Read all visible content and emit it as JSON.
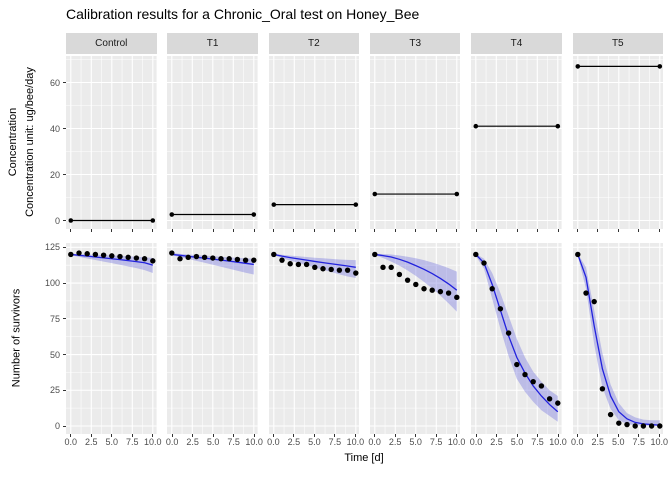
{
  "title": "Calibration results for a Chronic_Oral test on Honey_Bee",
  "colors": {
    "panel_background": "#ebebeb",
    "strip_background": "#d9d9d9",
    "grid_major": "#ffffff",
    "grid_minor": "#ffffff",
    "fit_line": "#2222dd",
    "ribbon": "rgba(100,100,220,0.35)",
    "observed_point": "#000000",
    "concentration_line": "#000000",
    "tick": "#333333",
    "axis_text": "#4d4d4d"
  },
  "chart_data": {
    "type": "line",
    "title": "Calibration results for a Chronic_Oral test on Honey_Bee",
    "xlabel": "Time [d]",
    "x": [
      0,
      1,
      2,
      3,
      4,
      5,
      6,
      7,
      8,
      9,
      10
    ],
    "x_tick_values": [
      0,
      2.5,
      5,
      7.5,
      10
    ],
    "x_tick_labels": [
      "0.0",
      "2.5",
      "5.0",
      "7.5",
      "10.0"
    ],
    "x_minor_ticks": [
      1.25,
      3.75,
      6.25,
      8.75
    ],
    "facet_labels": [
      "Control",
      "T1",
      "T2",
      "T3",
      "T4",
      "T5"
    ],
    "top_row": {
      "ylabel_line1": "Concentration",
      "ylabel_line2": "Concentration unit: ug/bee/day",
      "y_ticks": [
        0,
        20,
        40,
        60
      ],
      "y_minor_ticks": [
        10,
        30,
        50,
        70
      ],
      "ylim": [
        0,
        71.5
      ]
    },
    "bottom_row": {
      "ylabel": "Number of survivors",
      "y_ticks": [
        0,
        25,
        50,
        75,
        100,
        125
      ],
      "y_minor_ticks": [
        12.5,
        37.5,
        62.5,
        87.5,
        112.5
      ],
      "ylim": [
        0,
        128
      ]
    },
    "facets": [
      {
        "label": "Control",
        "concentration": 0,
        "observed": [
          120,
          121,
          120.5,
          120,
          119.5,
          119,
          118.5,
          118,
          117.5,
          117,
          115.5
        ],
        "fit": [
          120,
          119.4,
          118.8,
          118.2,
          117.6,
          117,
          116.4,
          115.7,
          115,
          114.2,
          112.5
        ],
        "ci_upper": [
          120.5,
          120.2,
          120,
          119.8,
          119.5,
          119.3,
          119,
          118.7,
          118.4,
          118,
          117.5
        ],
        "ci_lower": [
          119.5,
          118.3,
          117.2,
          116.1,
          115,
          113.9,
          112.8,
          111.6,
          110.4,
          109,
          107
        ]
      },
      {
        "label": "T1",
        "concentration": 2.6,
        "observed": [
          121,
          117,
          118,
          118.5,
          118,
          117.5,
          117,
          117,
          116.5,
          116,
          116
        ],
        "fit": [
          120,
          119.4,
          118.7,
          118,
          117.4,
          116.7,
          116,
          115.3,
          114.6,
          113.8,
          113
        ],
        "ci_upper": [
          121,
          120.4,
          120,
          119.6,
          119.2,
          118.8,
          118.4,
          118,
          117.6,
          117.3,
          117
        ],
        "ci_lower": [
          119.5,
          118.1,
          116.8,
          115.5,
          114.2,
          112.8,
          111.4,
          110,
          108.6,
          107.2,
          106
        ]
      },
      {
        "label": "T2",
        "concentration": 6.9,
        "observed": [
          120,
          116,
          113.5,
          113,
          113,
          111,
          110,
          109.5,
          109,
          109,
          107
        ],
        "fit": [
          120,
          118.8,
          117.8,
          116.9,
          116,
          115.1,
          114.3,
          113.5,
          112.7,
          111.9,
          111
        ],
        "ci_upper": [
          120.5,
          119.8,
          119.2,
          118.7,
          118.2,
          117.7,
          117.3,
          116.9,
          116.5,
          116.2,
          116
        ],
        "ci_lower": [
          119.5,
          117.4,
          115.7,
          114.1,
          112.5,
          110.9,
          109.3,
          107.7,
          106.1,
          104.6,
          103.5
        ]
      },
      {
        "label": "T3",
        "concentration": 11.5,
        "observed": [
          120,
          111,
          111,
          106,
          102,
          99,
          96,
          95,
          94,
          93,
          90
        ],
        "fit": [
          120,
          119.2,
          118.2,
          116.6,
          114.6,
          112.2,
          109.6,
          106.6,
          103.2,
          99.4,
          95
        ],
        "ci_upper": [
          120.5,
          120.3,
          120,
          119.3,
          118.4,
          117.3,
          116,
          114.4,
          112.5,
          110.4,
          108
        ],
        "ci_lower": [
          119.5,
          117.5,
          115,
          112.2,
          108.8,
          105,
          100.8,
          96.2,
          91.2,
          85.8,
          80
        ]
      },
      {
        "label": "T4",
        "concentration": 41,
        "observed": [
          120,
          114,
          96,
          82,
          65,
          43,
          36,
          31,
          28,
          19,
          16
        ],
        "fit": [
          120,
          114,
          99,
          81,
          63,
          48,
          37,
          28,
          21,
          15,
          10
        ],
        "ci_upper": [
          120.5,
          117,
          107,
          93,
          77,
          61,
          48,
          38,
          31,
          25,
          21
        ],
        "ci_lower": [
          119,
          110,
          89,
          68,
          49,
          33,
          24,
          17,
          11,
          7,
          3
        ]
      },
      {
        "label": "T5",
        "concentration": 67,
        "observed": [
          120,
          93,
          87,
          26,
          8,
          2,
          1,
          0,
          0,
          0,
          0
        ],
        "fit": [
          120,
          104,
          70,
          40,
          21,
          10,
          5,
          2.5,
          1.5,
          1,
          0.5
        ],
        "ci_upper": [
          120.5,
          111,
          81,
          51,
          29,
          16,
          9,
          6,
          4.5,
          4,
          4
        ],
        "ci_lower": [
          119,
          96,
          57,
          27,
          12,
          4,
          1.5,
          0.5,
          0.3,
          0.2,
          0.2
        ]
      }
    ]
  }
}
